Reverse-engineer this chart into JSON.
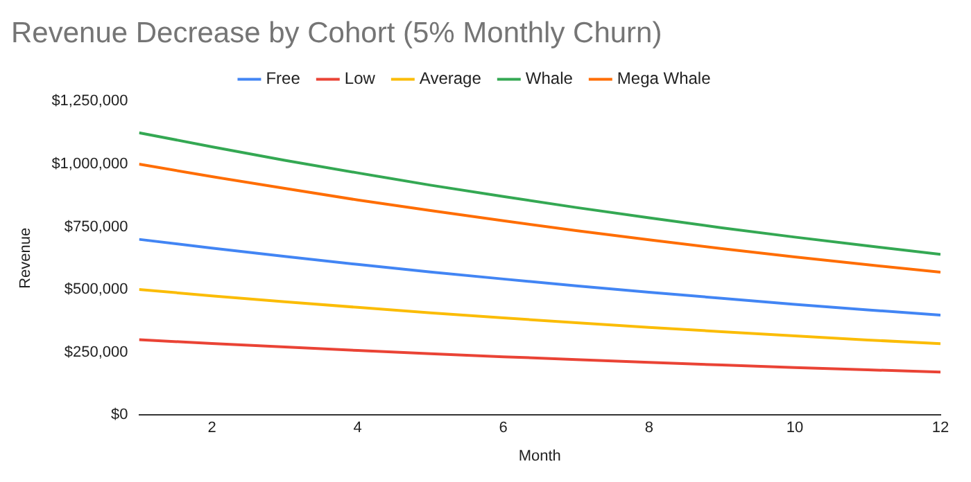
{
  "chart_data": {
    "type": "line",
    "title": "Revenue Decrease by Cohort (5% Monthly Churn)",
    "xlabel": "Month",
    "ylabel": "Revenue",
    "x": [
      1,
      2,
      3,
      4,
      5,
      6,
      7,
      8,
      9,
      10,
      11,
      12
    ],
    "series": [
      {
        "name": "Free",
        "color": "#4285f4",
        "values": [
          700000,
          665000,
          632000,
          600000,
          570000,
          542000,
          515000,
          489000,
          465000,
          441000,
          419000,
          398000
        ]
      },
      {
        "name": "Low",
        "color": "#ea4335",
        "values": [
          300000,
          285000,
          271000,
          257000,
          244000,
          232000,
          221000,
          210000,
          199000,
          189000,
          180000,
          171000
        ]
      },
      {
        "name": "Average",
        "color": "#fbbc04",
        "values": [
          500000,
          475000,
          451000,
          429000,
          407000,
          387000,
          368000,
          349000,
          332000,
          315000,
          299000,
          284000
        ]
      },
      {
        "name": "Whale",
        "color": "#34a853",
        "values": [
          1125000,
          1069000,
          1015000,
          965000,
          916000,
          871000,
          827000,
          786000,
          746000,
          709000,
          674000,
          640000
        ]
      },
      {
        "name": "Mega Whale",
        "color": "#ff6d01",
        "values": [
          1000000,
          950000,
          903000,
          857000,
          815000,
          774000,
          735000,
          698000,
          663000,
          630000,
          599000,
          569000
        ]
      }
    ],
    "xlim": [
      1,
      12
    ],
    "xticks": [
      2,
      4,
      6,
      8,
      10,
      12
    ],
    "ylim": [
      0,
      1250000
    ],
    "yticks": [
      {
        "value": 0,
        "label": "$0"
      },
      {
        "value": 250000,
        "label": "$250,000"
      },
      {
        "value": 500000,
        "label": "$500,000"
      },
      {
        "value": 750000,
        "label": "$750,000"
      },
      {
        "value": 1000000,
        "label": "$1,000,000"
      },
      {
        "value": 1250000,
        "label": "$1,250,000"
      }
    ],
    "legend": "top",
    "marker": "none",
    "line_style": "solid"
  }
}
